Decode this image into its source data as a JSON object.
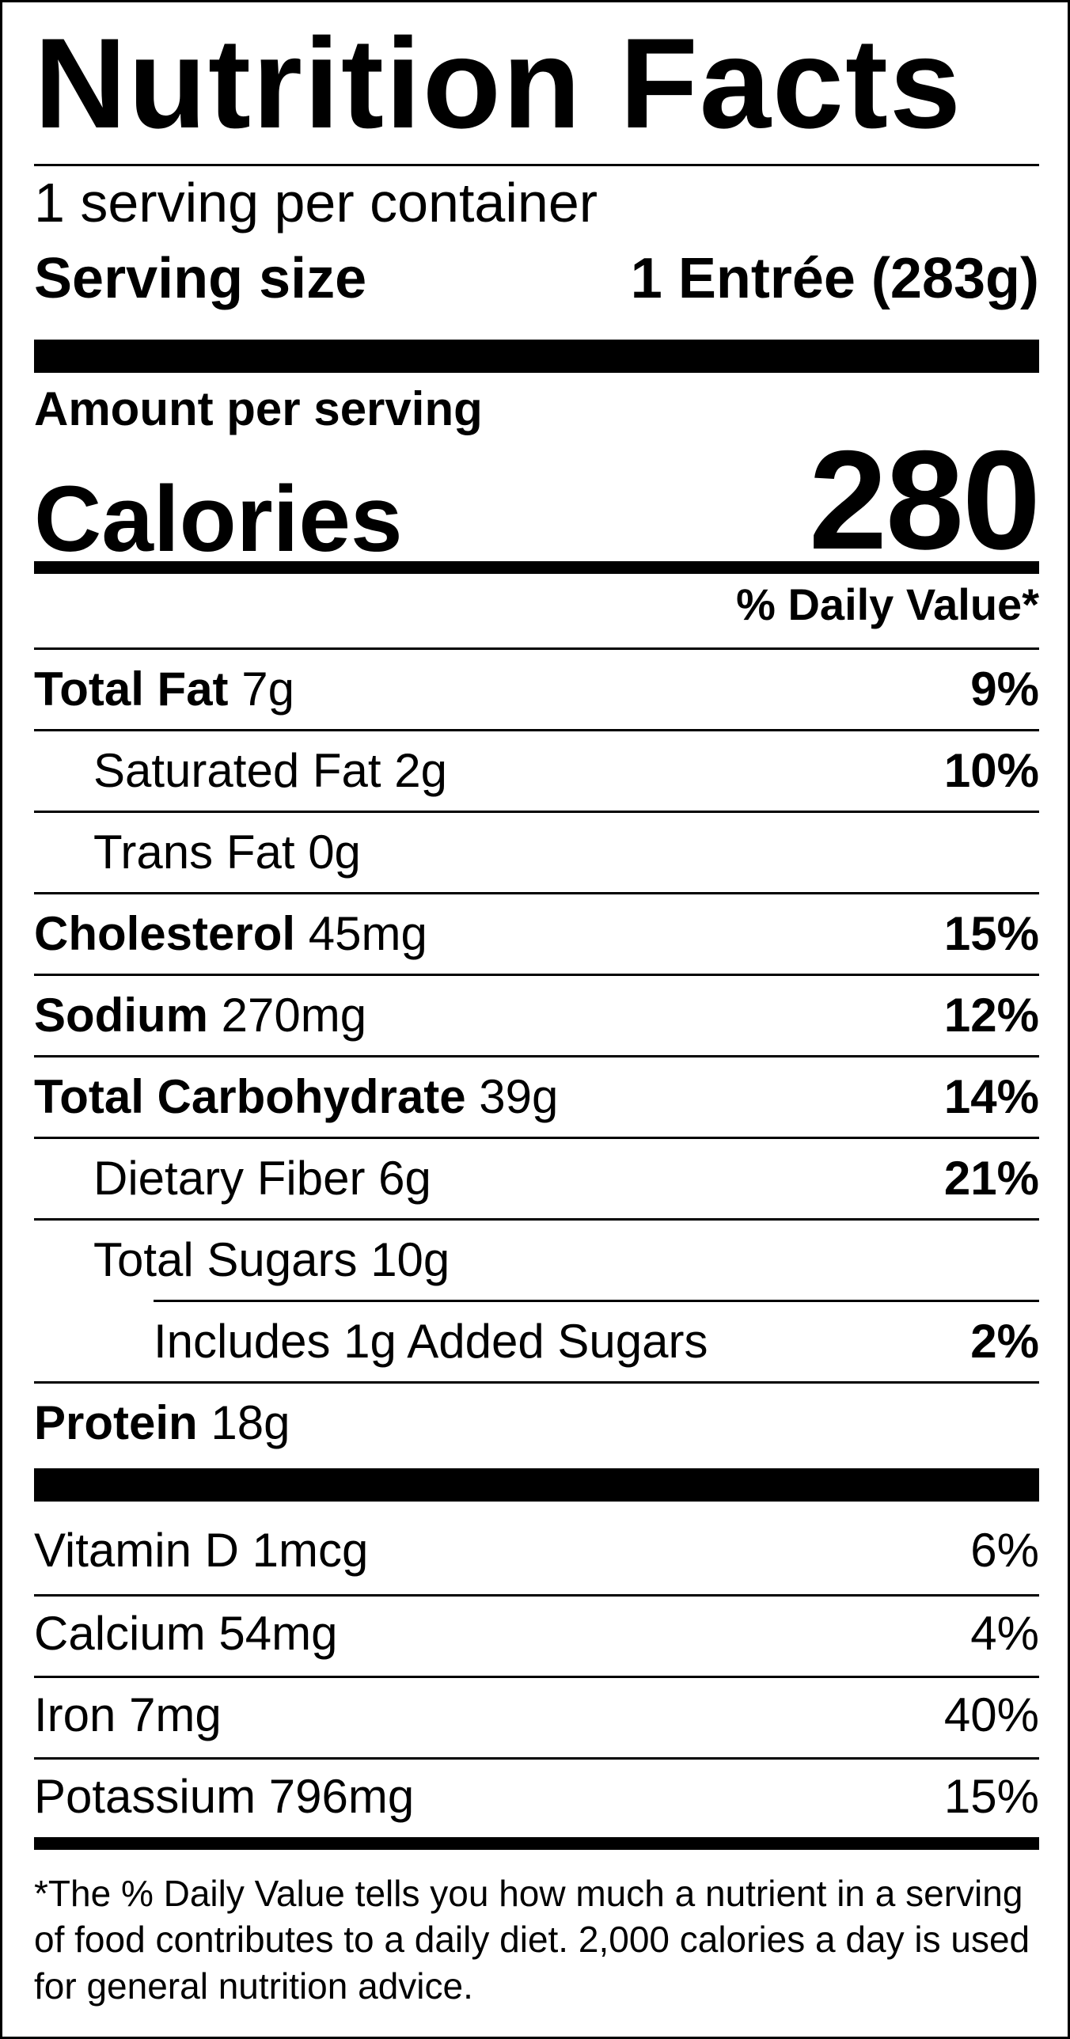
{
  "title": "Nutrition Facts",
  "servings_per_container": "1 serving per container",
  "serving_size": {
    "label": "Serving size",
    "value": "1 Entrée (283g)"
  },
  "amount_per_serving": "Amount per serving",
  "calories": {
    "label": "Calories",
    "value": "280"
  },
  "daily_value_header": "% Daily Value*",
  "nutrients": [
    {
      "name": "Total Fat",
      "amount": "7g",
      "dv": "9%"
    },
    {
      "name": "Saturated Fat",
      "amount": "2g",
      "dv": "10%"
    },
    {
      "name": "Trans Fat",
      "amount": "0g",
      "dv": ""
    },
    {
      "name": "Cholesterol",
      "amount": "45mg",
      "dv": "15%"
    },
    {
      "name": "Sodium",
      "amount": "270mg",
      "dv": "12%"
    },
    {
      "name": "Total Carbohydrate",
      "amount": "39g",
      "dv": "14%"
    },
    {
      "name": "Dietary Fiber",
      "amount": "6g",
      "dv": "21%"
    },
    {
      "name": "Total Sugars",
      "amount": "10g",
      "dv": ""
    },
    {
      "name": "Includes 1g Added Sugars",
      "amount": "",
      "dv": "2%"
    },
    {
      "name": "Protein",
      "amount": "18g",
      "dv": ""
    }
  ],
  "vitamins": [
    {
      "name": "Vitamin D",
      "amount": "1mcg",
      "dv": "6%"
    },
    {
      "name": "Calcium",
      "amount": "54mg",
      "dv": "4%"
    },
    {
      "name": "Iron",
      "amount": "7mg",
      "dv": "40%"
    },
    {
      "name": "Potassium",
      "amount": "796mg",
      "dv": "15%"
    }
  ],
  "footnote": "*The % Daily Value tells you how much a nutrient in a serving of food contributes to a daily diet. 2,000 calories a day is used for general nutrition advice."
}
